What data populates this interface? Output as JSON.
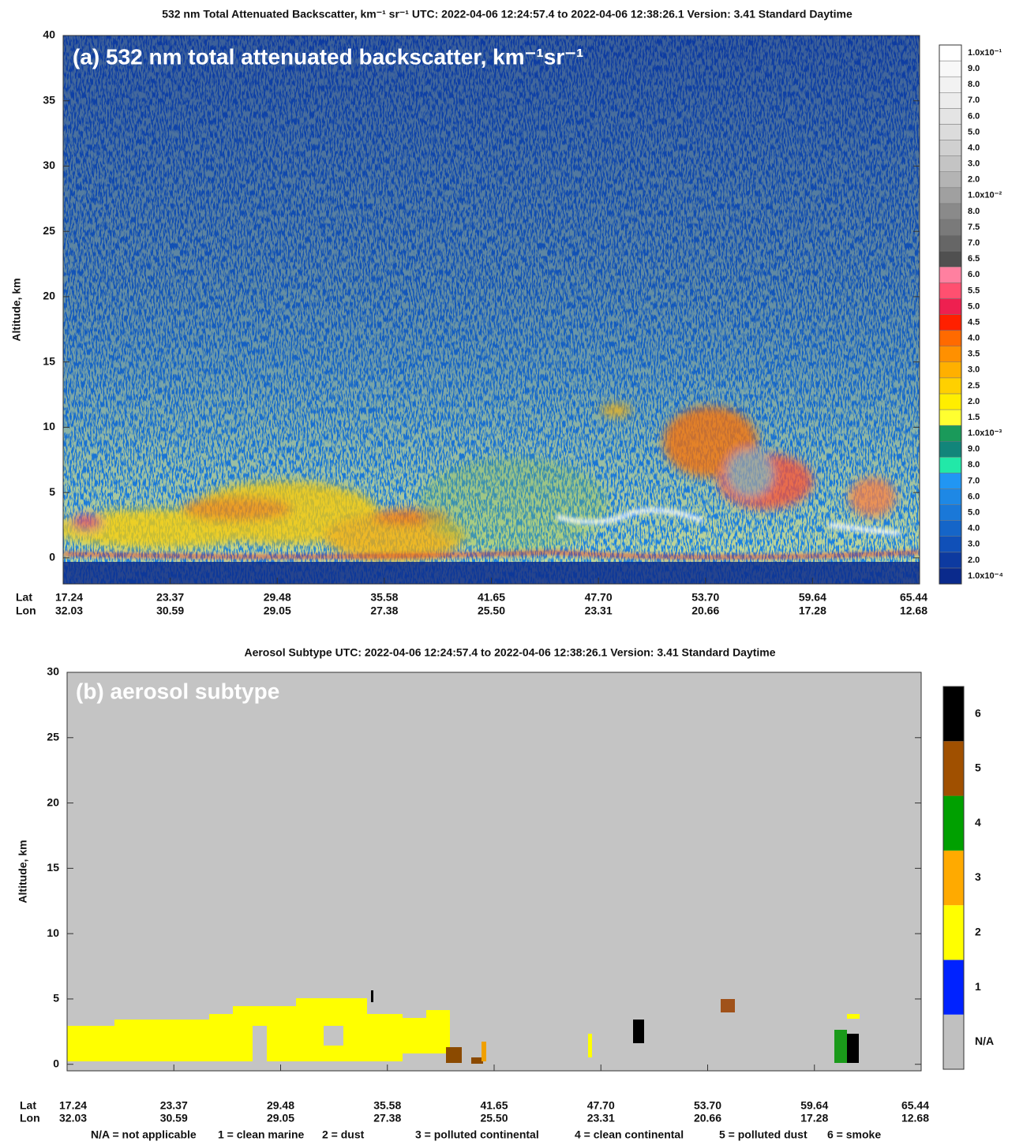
{
  "chart_data": [
    {
      "type": "curtain",
      "title": "532 nm Total Attenuated Backscatter, km⁻¹ sr⁻¹   UTC:  2022-04-06 12:24:57.4  to  2022-04-06 12:38:26.1    Version: 3.41  Standard  Daytime",
      "annotation": "(a) 532 nm total attenuated backscatter, km⁻¹sr⁻¹",
      "y_label": "Altitude, km",
      "ylim": [
        -2,
        40
      ],
      "yticks": [
        0,
        5,
        10,
        15,
        20,
        25,
        30,
        35,
        40
      ],
      "x_label_rows": [
        {
          "name": "Lat",
          "labels": [
            "17.24",
            "23.37",
            "29.48",
            "35.58",
            "41.65",
            "47.70",
            "53.70",
            "59.64",
            "65.44"
          ]
        },
        {
          "name": "Lon",
          "labels": [
            "32.03",
            "30.59",
            "29.05",
            "27.38",
            "25.50",
            "23.31",
            "20.66",
            "17.28",
            "12.68"
          ]
        }
      ],
      "colorbar": {
        "labels": [
          "1.0x10⁻⁴",
          "2.0",
          "3.0",
          "4.0",
          "5.0",
          "6.0",
          "7.0",
          "8.0",
          "9.0",
          "1.0x10⁻³",
          "1.5",
          "2.0",
          "2.5",
          "3.0",
          "3.5",
          "4.0",
          "4.5",
          "5.0",
          "5.5",
          "6.0",
          "6.5",
          "7.0",
          "7.5",
          "8.0",
          "1.0x10⁻²",
          "2.0",
          "3.0",
          "4.0",
          "5.0",
          "6.0",
          "7.0",
          "8.0",
          "9.0",
          "1.0x10⁻¹"
        ],
        "colors": [
          "#0a2a8c",
          "#0d3aa0",
          "#1050b8",
          "#1565c8",
          "#1a78d8",
          "#1e88e5",
          "#2196f3",
          "#22e8a8",
          "#12857a",
          "#1a9a5a",
          "#ffff30",
          "#ffee00",
          "#ffd000",
          "#ffb000",
          "#ff9000",
          "#ff6a00",
          "#ff2000",
          "#ee2050",
          "#ff5070",
          "#ff80a0",
          "#505050",
          "#666666",
          "#7a7a7a",
          "#8a8a8a",
          "#a0a0a0",
          "#b4b4b4",
          "#c4c4c4",
          "#d0d0d0",
          "#dcdcdc",
          "#e4e4e4",
          "#ececec",
          "#f2f2f2",
          "#f8f8f8",
          "#ffffff"
        ]
      }
    },
    {
      "type": "curtain",
      "title": "Aerosol Subtype    UTC:  2022-04-06    12:24:57.4  to  2022-04-06    12:38:26.1    Version: 3.41  Standard Daytime",
      "annotation": "(b) aerosol subtype",
      "y_label": "Altitude, km",
      "ylim": [
        -0.5,
        30
      ],
      "yticks": [
        0,
        5,
        10,
        15,
        20,
        25,
        30
      ],
      "x_label_rows": [
        {
          "name": "Lat",
          "labels": [
            "17.24",
            "23.37",
            "29.48",
            "35.58",
            "41.65",
            "47.70",
            "53.70",
            "59.64",
            "65.44"
          ]
        },
        {
          "name": "Lon",
          "labels": [
            "32.03",
            "30.59",
            "29.05",
            "27.38",
            "25.50",
            "23.31",
            "20.66",
            "17.28",
            "12.68"
          ]
        }
      ],
      "colorbar": {
        "labels": [
          "N/A",
          "1",
          "2",
          "3",
          "4",
          "5",
          "6"
        ],
        "colors": [
          "#c0c0c0",
          "#0022ff",
          "#ffff00",
          "#ffaa00",
          "#00a000",
          "#a05000",
          "#000000"
        ]
      },
      "legend": [
        "N/A = not applicable",
        "1 = clean marine",
        "2 = dust",
        "3 = polluted continental",
        "4 = clean continental",
        "5 = polluted dust",
        "6 = smoke"
      ]
    }
  ]
}
